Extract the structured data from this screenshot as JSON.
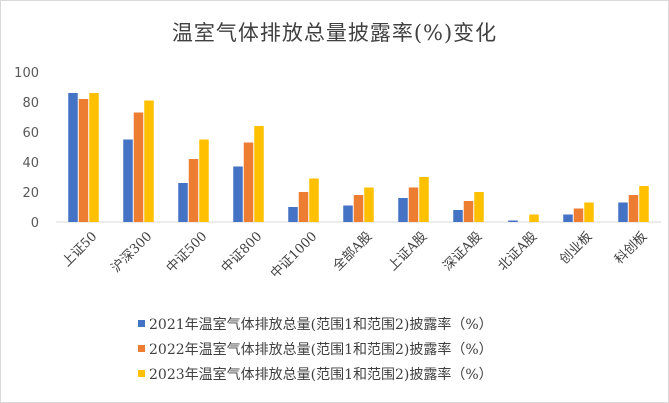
{
  "chart_data": {
    "type": "bar",
    "title": "温室气体排放总量披露率(%)变化",
    "categories": [
      "上证50",
      "沪深300",
      "中证500",
      "中证800",
      "中证1000",
      "全部A股",
      "上证A股",
      "深证A股",
      "北证A股",
      "创业板",
      "科创板"
    ],
    "series": [
      {
        "name": "2021年温室气体排放总量(范围1和范围2)披露率（%）",
        "color": "#4472c4",
        "values": [
          86,
          55,
          26,
          37,
          10,
          11,
          16,
          8,
          1,
          5,
          13
        ]
      },
      {
        "name": "2022年温室气体排放总量(范围1和范围2)披露率（%）",
        "color": "#ed7d31",
        "values": [
          82,
          73,
          42,
          53,
          20,
          18,
          23,
          14,
          0,
          9,
          18
        ]
      },
      {
        "name": "2023年温室气体排放总量(范围1和范围2)披露率（%）",
        "color": "#ffc000",
        "values": [
          86,
          81,
          55,
          64,
          29,
          23,
          30,
          20,
          5,
          13,
          24
        ]
      }
    ],
    "ylim": [
      0,
      100
    ],
    "yticks": [
      0,
      20,
      40,
      60,
      80,
      100
    ],
    "grid": false,
    "legend_position": "bottom"
  }
}
